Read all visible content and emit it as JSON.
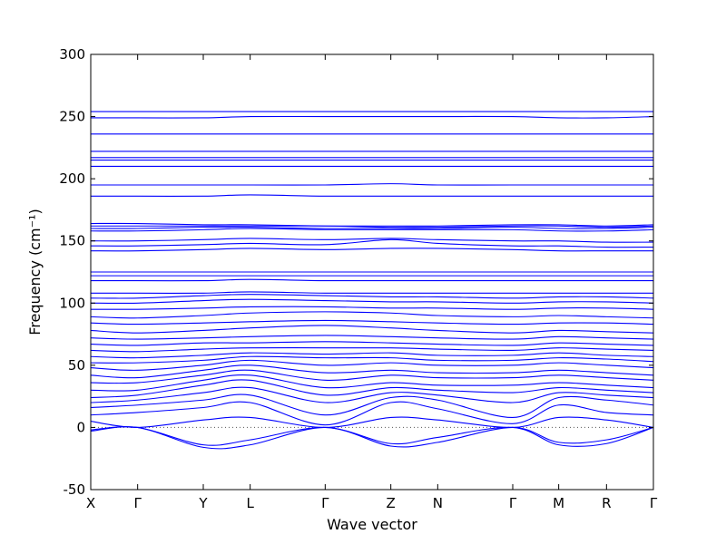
{
  "chart_data": {
    "type": "line",
    "xlabel": "Wave vector",
    "ylabel": "Frequency (cm⁻¹)",
    "ylim": [
      -50,
      300
    ],
    "yticks": [
      -50,
      0,
      50,
      100,
      150,
      200,
      250,
      300
    ],
    "xlim": [
      0,
      12
    ],
    "xticks": [
      {
        "pos": 0,
        "label": "X"
      },
      {
        "pos": 1,
        "label": "Γ"
      },
      {
        "pos": 2.4,
        "label": "Y"
      },
      {
        "pos": 3.4,
        "label": "L"
      },
      {
        "pos": 5,
        "label": "Γ"
      },
      {
        "pos": 6.4,
        "label": "Z"
      },
      {
        "pos": 7.4,
        "label": "N"
      },
      {
        "pos": 9,
        "label": "Γ"
      },
      {
        "pos": 9.98,
        "label": "M"
      },
      {
        "pos": 11,
        "label": "R"
      },
      {
        "pos": 12,
        "label": "Γ"
      }
    ],
    "reference_line": {
      "y": 0,
      "style": "dotted"
    },
    "line_color": "#0000ff",
    "x": [
      0,
      1,
      2.4,
      3.4,
      5,
      6.4,
      7.4,
      9,
      9.98,
      11,
      12
    ],
    "series": [
      {
        "values": [
          -3,
          0,
          -16,
          -14,
          0,
          -15,
          -12,
          0,
          -12,
          -10,
          0
        ]
      },
      {
        "values": [
          -2,
          0,
          -14,
          -10,
          0,
          -13,
          -8,
          0,
          -14,
          -13,
          0
        ]
      },
      {
        "values": [
          5,
          0,
          6,
          8,
          0,
          8,
          6,
          0,
          8,
          6,
          0
        ]
      },
      {
        "values": [
          10,
          12,
          16,
          20,
          2,
          20,
          15,
          3,
          18,
          12,
          10
        ]
      },
      {
        "values": [
          16,
          18,
          22,
          26,
          10,
          24,
          22,
          8,
          24,
          22,
          18
        ]
      },
      {
        "values": [
          20,
          22,
          28,
          32,
          20,
          28,
          26,
          20,
          28,
          26,
          24
        ]
      },
      {
        "values": [
          24,
          26,
          34,
          38,
          26,
          32,
          30,
          28,
          32,
          30,
          28
        ]
      },
      {
        "values": [
          30,
          30,
          38,
          42,
          32,
          36,
          34,
          34,
          36,
          34,
          32
        ]
      },
      {
        "values": [
          36,
          36,
          42,
          46,
          38,
          42,
          40,
          40,
          42,
          40,
          38
        ]
      },
      {
        "values": [
          42,
          40,
          46,
          50,
          44,
          46,
          44,
          44,
          46,
          44,
          42
        ]
      },
      {
        "values": [
          48,
          46,
          50,
          54,
          50,
          52,
          50,
          50,
          52,
          50,
          48
        ]
      },
      {
        "values": [
          52,
          52,
          54,
          57,
          56,
          56,
          54,
          54,
          56,
          55,
          53
        ]
      },
      {
        "values": [
          57,
          56,
          58,
          60,
          59,
          60,
          58,
          58,
          60,
          58,
          57
        ]
      },
      {
        "values": [
          62,
          61,
          63,
          64,
          64,
          64,
          63,
          62,
          64,
          63,
          62
        ]
      },
      {
        "values": [
          67,
          66,
          68,
          68,
          69,
          68,
          67,
          66,
          68,
          67,
          66
        ]
      },
      {
        "values": [
          72,
          71,
          72,
          73,
          74,
          73,
          72,
          71,
          73,
          72,
          71
        ]
      },
      {
        "values": [
          78,
          76,
          78,
          80,
          82,
          80,
          78,
          76,
          78,
          77,
          76
        ]
      },
      {
        "values": [
          84,
          83,
          84,
          85,
          86,
          85,
          84,
          83,
          84,
          84,
          83
        ]
      },
      {
        "values": [
          89,
          88,
          90,
          92,
          93,
          92,
          90,
          89,
          90,
          89,
          88
        ]
      },
      {
        "values": [
          95,
          95,
          96,
          97,
          97,
          96,
          96,
          95,
          96,
          96,
          95
        ]
      },
      {
        "values": [
          100,
          100,
          102,
          103,
          102,
          101,
          101,
          100,
          101,
          101,
          100
        ]
      },
      {
        "values": [
          104,
          104,
          106,
          107,
          106,
          105,
          105,
          104,
          105,
          105,
          104
        ]
      },
      {
        "values": [
          108,
          108,
          108,
          109,
          108,
          108,
          108,
          108,
          108,
          108,
          108
        ]
      },
      {
        "values": [
          118,
          118,
          118,
          119,
          118,
          118,
          118,
          118,
          118,
          118,
          118
        ]
      },
      {
        "values": [
          122,
          122,
          122,
          122,
          122,
          122,
          122,
          122,
          122,
          122,
          122
        ]
      },
      {
        "values": [
          125,
          125,
          125,
          125,
          125,
          125,
          125,
          125,
          125,
          125,
          125
        ]
      },
      {
        "values": [
          142,
          142,
          143,
          144,
          143,
          144,
          144,
          143,
          142,
          142,
          142
        ]
      },
      {
        "values": [
          146,
          146,
          147,
          148,
          147,
          151,
          148,
          146,
          146,
          145,
          145
        ]
      },
      {
        "values": [
          150,
          150,
          151,
          152,
          151,
          152,
          151,
          150,
          150,
          149,
          149
        ]
      },
      {
        "values": [
          158,
          158,
          159,
          160,
          159,
          159,
          159,
          159,
          158,
          158,
          159
        ]
      },
      {
        "values": [
          160,
          160,
          161,
          161,
          160,
          160,
          160,
          161,
          160,
          160,
          161
        ]
      },
      {
        "values": [
          162,
          162,
          162,
          162,
          162,
          161,
          161,
          162,
          162,
          161,
          162
        ]
      },
      {
        "values": [
          164,
          164,
          163,
          163,
          162,
          162,
          162,
          163,
          163,
          162,
          163
        ]
      },
      {
        "values": [
          186,
          186,
          186,
          187,
          186,
          186,
          186,
          186,
          186,
          186,
          186
        ]
      },
      {
        "values": [
          195,
          195,
          195,
          195,
          195,
          196,
          195,
          195,
          195,
          195,
          195
        ]
      },
      {
        "values": [
          210,
          210,
          210,
          210,
          210,
          210,
          210,
          210,
          210,
          210,
          210
        ]
      },
      {
        "values": [
          215,
          215,
          215,
          215,
          215,
          215,
          215,
          215,
          215,
          215,
          215
        ]
      },
      {
        "values": [
          217,
          217,
          217,
          217,
          217,
          217,
          217,
          217,
          217,
          217,
          217
        ]
      },
      {
        "values": [
          222,
          222,
          222,
          222,
          222,
          222,
          222,
          222,
          222,
          222,
          222
        ]
      },
      {
        "values": [
          236,
          236,
          236,
          236,
          236,
          236,
          236,
          236,
          236,
          236,
          236
        ]
      },
      {
        "values": [
          249,
          249,
          249,
          250,
          250,
          250,
          250,
          250,
          249,
          249,
          250
        ]
      },
      {
        "values": [
          254,
          254,
          254,
          254,
          254,
          254,
          254,
          254,
          254,
          254,
          254
        ]
      }
    ]
  }
}
